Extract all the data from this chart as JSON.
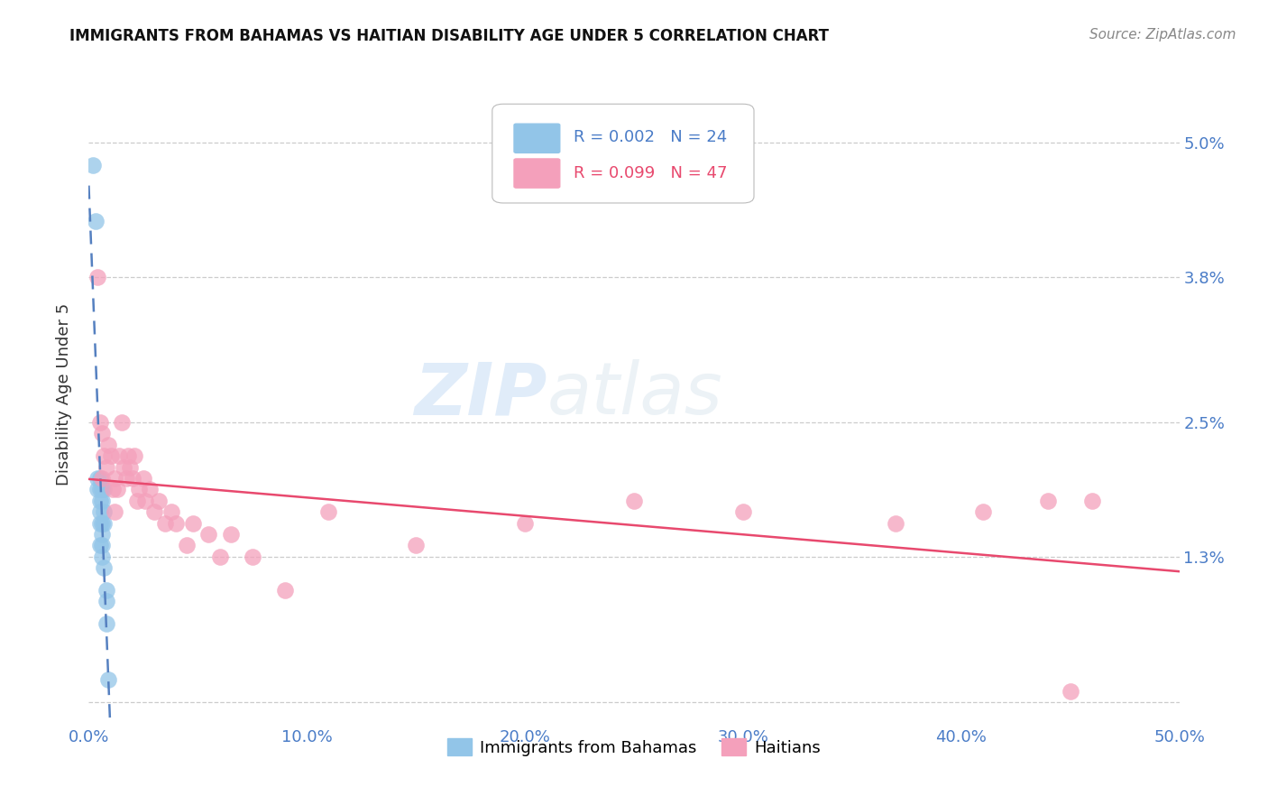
{
  "title": "IMMIGRANTS FROM BAHAMAS VS HAITIAN DISABILITY AGE UNDER 5 CORRELATION CHART",
  "source": "Source: ZipAtlas.com",
  "ylabel": "Disability Age Under 5",
  "xlim": [
    0.0,
    0.5
  ],
  "ylim": [
    -0.002,
    0.057
  ],
  "yticks": [
    0.0,
    0.013,
    0.025,
    0.038,
    0.05
  ],
  "ytick_labels": [
    "",
    "1.3%",
    "2.5%",
    "3.8%",
    "5.0%"
  ],
  "xticks": [
    0.0,
    0.1,
    0.2,
    0.3,
    0.4,
    0.5
  ],
  "xtick_labels": [
    "0.0%",
    "10.0%",
    "20.0%",
    "30.0%",
    "40.0%",
    "50.0%"
  ],
  "legend1_label": "Immigrants from Bahamas",
  "legend2_label": "Haitians",
  "r1": "R = 0.002",
  "n1": "N = 24",
  "r2": "R = 0.099",
  "n2": "N = 47",
  "color_blue": "#92c5e8",
  "color_pink": "#f4a0bb",
  "color_blue_line": "#5580c0",
  "color_pink_line": "#e8496e",
  "watermark_zip": "ZIP",
  "watermark_atlas": "atlas",
  "bahamas_x": [
    0.002,
    0.003,
    0.004,
    0.004,
    0.005,
    0.005,
    0.005,
    0.005,
    0.005,
    0.005,
    0.006,
    0.006,
    0.006,
    0.006,
    0.006,
    0.006,
    0.007,
    0.007,
    0.007,
    0.007,
    0.008,
    0.008,
    0.008,
    0.009
  ],
  "bahamas_y": [
    0.048,
    0.043,
    0.02,
    0.019,
    0.02,
    0.019,
    0.018,
    0.017,
    0.016,
    0.014,
    0.019,
    0.018,
    0.016,
    0.015,
    0.014,
    0.013,
    0.019,
    0.017,
    0.016,
    0.012,
    0.01,
    0.009,
    0.007,
    0.002
  ],
  "haitian_x": [
    0.004,
    0.005,
    0.006,
    0.006,
    0.007,
    0.008,
    0.009,
    0.01,
    0.011,
    0.012,
    0.012,
    0.013,
    0.014,
    0.015,
    0.016,
    0.017,
    0.018,
    0.019,
    0.02,
    0.021,
    0.022,
    0.023,
    0.025,
    0.026,
    0.028,
    0.03,
    0.032,
    0.035,
    0.038,
    0.04,
    0.045,
    0.048,
    0.055,
    0.06,
    0.065,
    0.075,
    0.09,
    0.11,
    0.15,
    0.2,
    0.25,
    0.3,
    0.37,
    0.41,
    0.44,
    0.45,
    0.46
  ],
  "haitian_y": [
    0.038,
    0.025,
    0.024,
    0.02,
    0.022,
    0.021,
    0.023,
    0.022,
    0.019,
    0.02,
    0.017,
    0.019,
    0.022,
    0.025,
    0.021,
    0.02,
    0.022,
    0.021,
    0.02,
    0.022,
    0.018,
    0.019,
    0.02,
    0.018,
    0.019,
    0.017,
    0.018,
    0.016,
    0.017,
    0.016,
    0.014,
    0.016,
    0.015,
    0.013,
    0.015,
    0.013,
    0.01,
    0.017,
    0.014,
    0.016,
    0.018,
    0.017,
    0.016,
    0.017,
    0.018,
    0.001,
    0.018
  ]
}
